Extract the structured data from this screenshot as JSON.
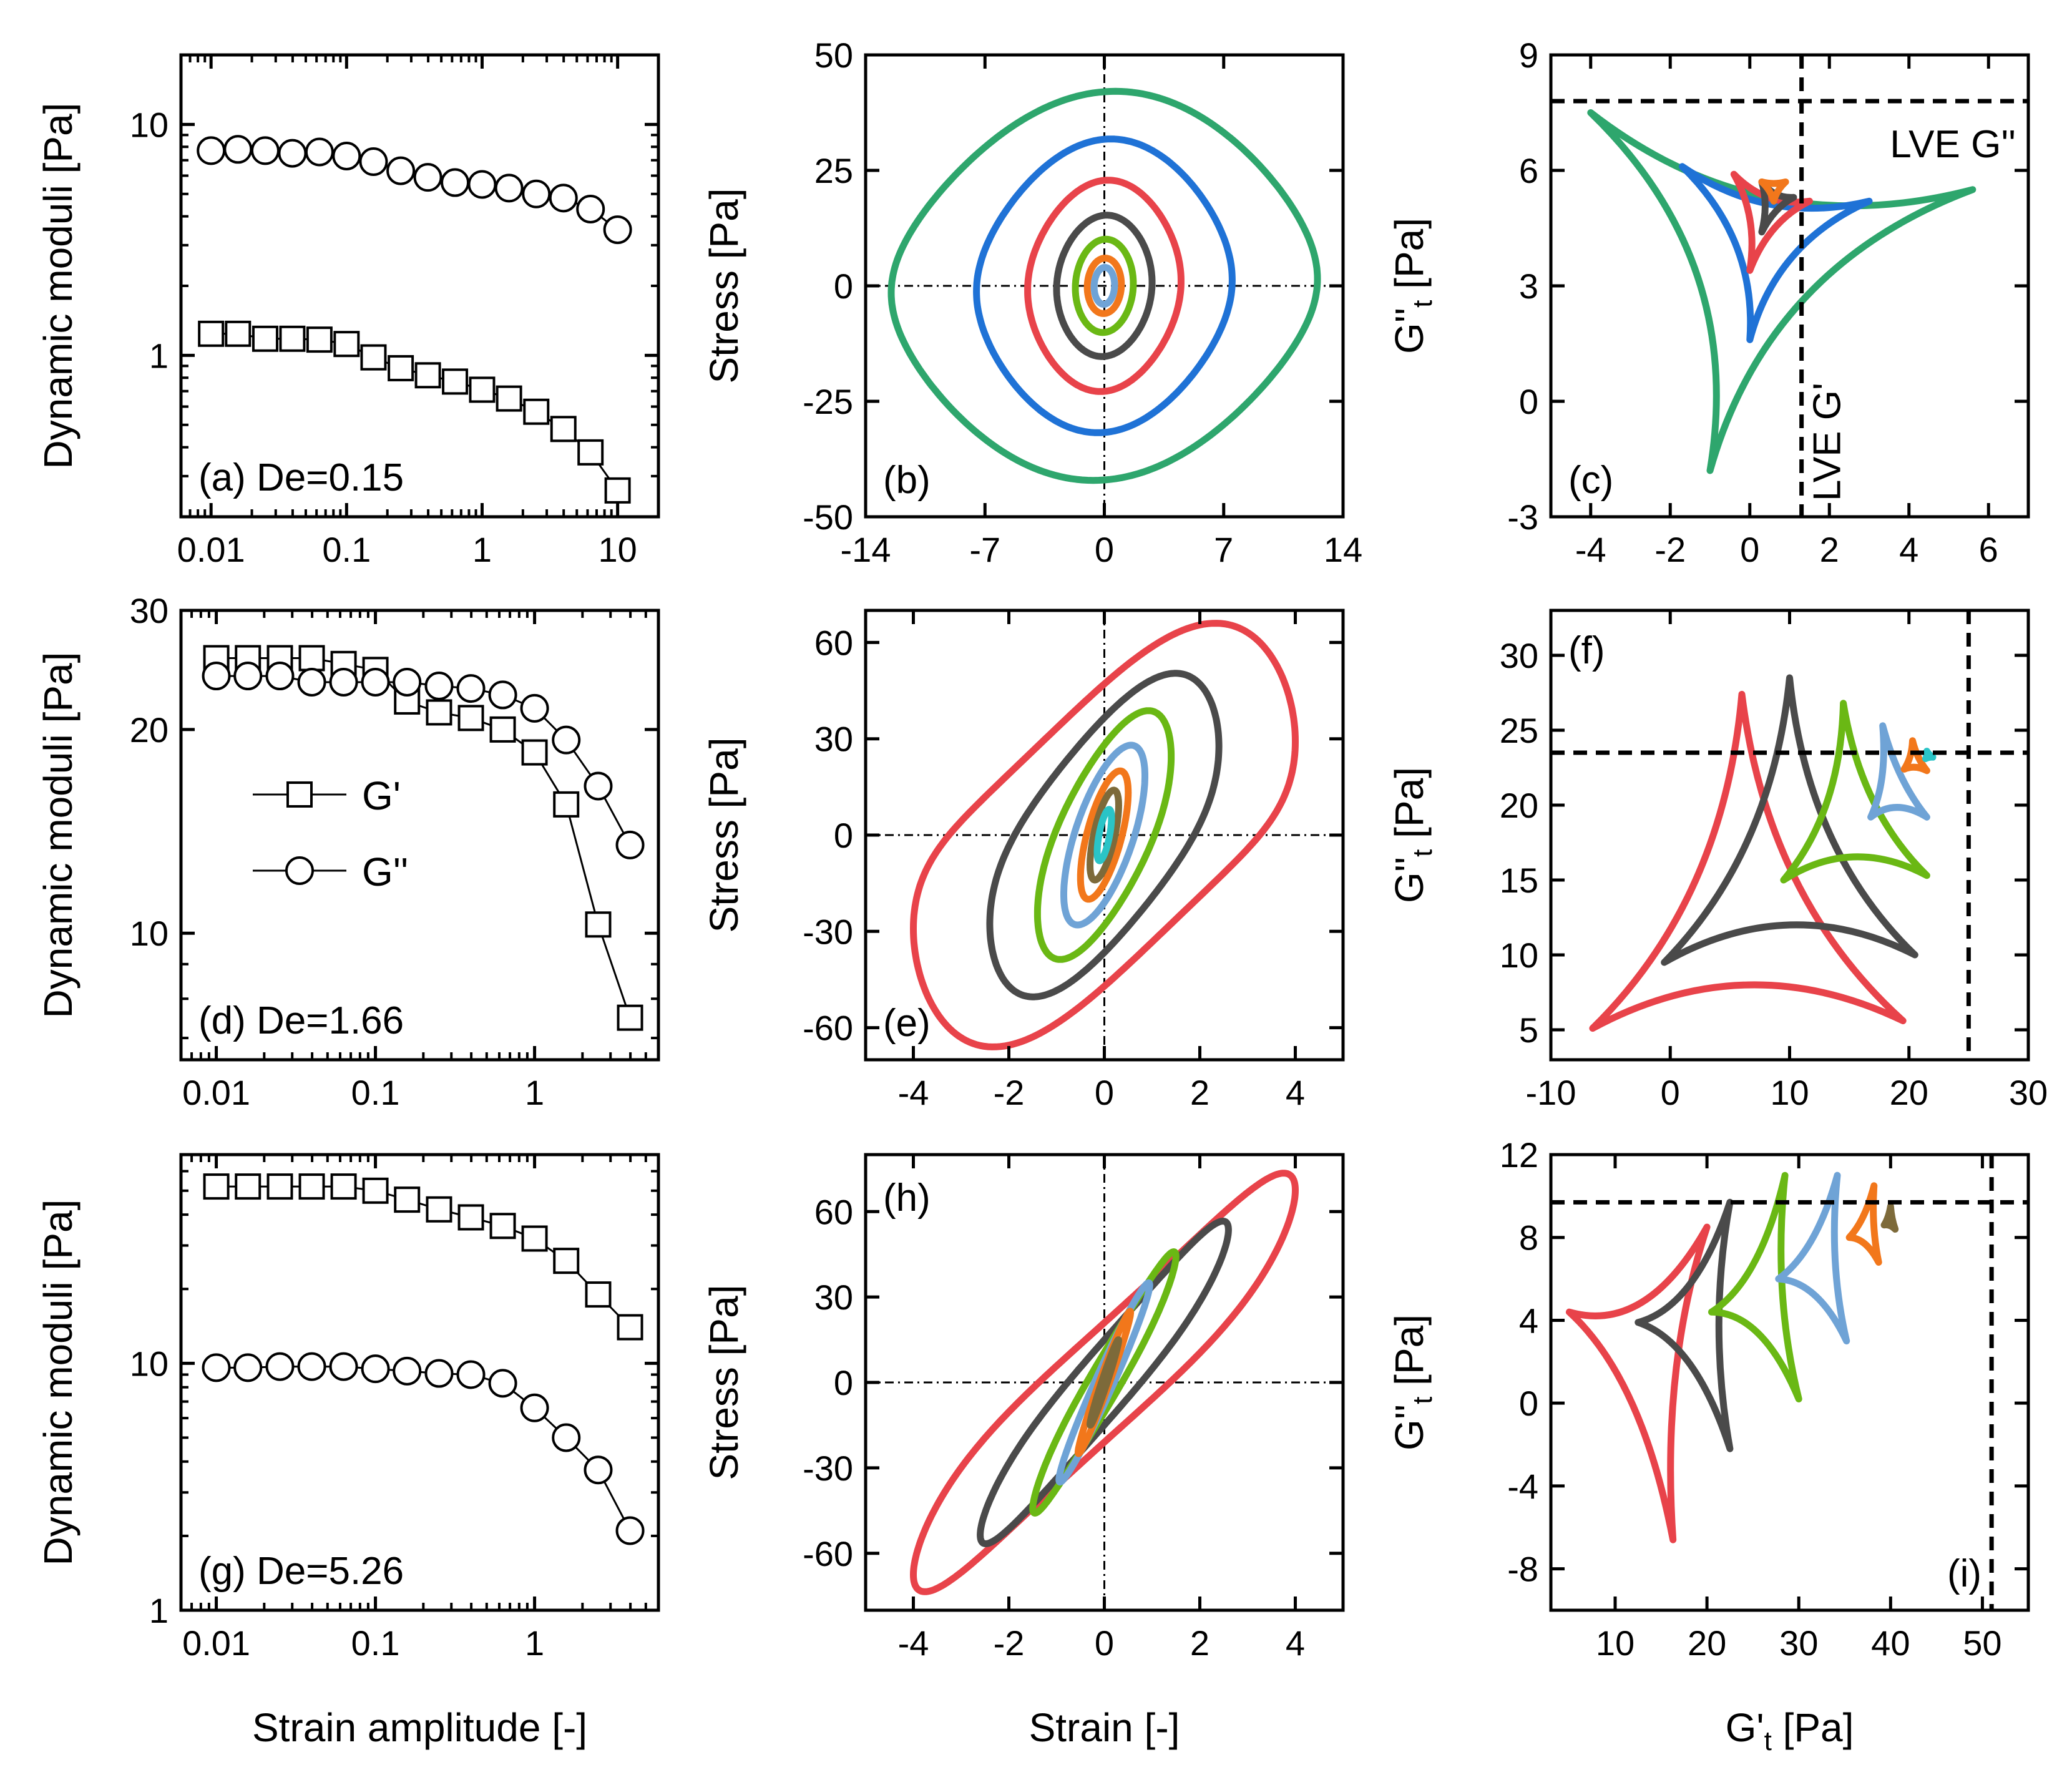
{
  "colors": {
    "green": "#2ea66d",
    "blue": "#1f72d6",
    "red": "#e8434a",
    "dark": "#4a4a4a",
    "lime": "#6ab814",
    "orange": "#f2771b",
    "lightblue": "#6fa3d6",
    "cyan": "#2ac4c7",
    "olive": "#7d6a3a"
  },
  "chart_data": [
    {
      "id": "a",
      "type": "scatter",
      "label": "(a) De=0.15",
      "ylabel": "Dynamic moduli [Pa]",
      "xscale": "log",
      "yscale": "log",
      "xlim": [
        0.006,
        20
      ],
      "ylim": [
        0.2,
        20
      ],
      "xticks": [
        {
          "v": 0.01,
          "t": "0.01"
        },
        {
          "v": 0.1,
          "t": "0.1"
        },
        {
          "v": 1,
          "t": "1"
        },
        {
          "v": 10,
          "t": "10"
        }
      ],
      "yticks": [
        {
          "v": 1,
          "t": "1"
        },
        {
          "v": 10,
          "t": "10"
        }
      ],
      "series": [
        {
          "name": "G'",
          "marker": "square",
          "x": [
            0.01,
            0.0158,
            0.0251,
            0.0398,
            0.0631,
            0.1,
            0.158,
            0.251,
            0.398,
            0.631,
            1,
            1.58,
            2.51,
            3.98,
            6.31,
            10
          ],
          "y": [
            1.24,
            1.24,
            1.18,
            1.18,
            1.17,
            1.12,
            0.98,
            0.88,
            0.82,
            0.77,
            0.71,
            0.65,
            0.57,
            0.48,
            0.38,
            0.26
          ]
        },
        {
          "name": "G''",
          "marker": "circle",
          "x": [
            0.01,
            0.0158,
            0.0251,
            0.0398,
            0.0631,
            0.1,
            0.158,
            0.251,
            0.398,
            0.631,
            1,
            1.58,
            2.51,
            3.98,
            6.31,
            10
          ],
          "y": [
            7.7,
            7.8,
            7.7,
            7.5,
            7.6,
            7.3,
            6.9,
            6.3,
            5.9,
            5.6,
            5.5,
            5.3,
            5.0,
            4.8,
            4.3,
            3.5
          ]
        }
      ]
    },
    {
      "id": "b",
      "type": "line",
      "label": "(b)",
      "ylabel": "Stress [Pa]",
      "xlim": [
        -14,
        14
      ],
      "ylim": [
        -50,
        50
      ],
      "xticks": [
        {
          "v": -14,
          "t": "-14"
        },
        {
          "v": -7,
          "t": "-7"
        },
        {
          "v": 0,
          "t": "0"
        },
        {
          "v": 7,
          "t": "7"
        },
        {
          "v": 14,
          "t": "14"
        }
      ],
      "yticks": [
        {
          "v": -50,
          "t": "-50"
        },
        {
          "v": -25,
          "t": "-25"
        },
        {
          "v": 0,
          "t": "0"
        },
        {
          "v": 25,
          "t": "25"
        },
        {
          "v": 50,
          "t": "50"
        }
      ],
      "series": [
        {
          "color": "green",
          "g0": 12.5,
          "s0": 39,
          "ph": 1.52,
          "h3": 0.08
        },
        {
          "color": "blue",
          "g0": 7.5,
          "s0": 30,
          "ph": 1.52,
          "h3": 0.06
        },
        {
          "color": "red",
          "g0": 4.5,
          "s0": 22,
          "ph": 1.52,
          "h3": 0.04
        },
        {
          "color": "dark",
          "g0": 2.8,
          "s0": 15,
          "ph": 1.52,
          "h3": 0.02
        },
        {
          "color": "lime",
          "g0": 1.7,
          "s0": 10,
          "ph": 1.52,
          "h3": 0.01
        },
        {
          "color": "orange",
          "g0": 1.0,
          "s0": 6,
          "ph": 1.52,
          "h3": 0
        },
        {
          "color": "lightblue",
          "g0": 0.6,
          "s0": 4,
          "ph": 1.52,
          "h3": 0
        }
      ]
    },
    {
      "id": "c",
      "type": "line",
      "label": "(c)",
      "ylabel": "G''t [Pa]",
      "xlim": [
        -5,
        7
      ],
      "ylim": [
        -3,
        9
      ],
      "xticks": [
        {
          "v": -4,
          "t": "-4"
        },
        {
          "v": -2,
          "t": "-2"
        },
        {
          "v": 0,
          "t": "0"
        },
        {
          "v": 2,
          "t": "2"
        },
        {
          "v": 4,
          "t": "4"
        },
        {
          "v": 6,
          "t": "6"
        }
      ],
      "yticks": [
        {
          "v": -3,
          "t": "-3"
        },
        {
          "v": 0,
          "t": "0"
        },
        {
          "v": 3,
          "t": "3"
        },
        {
          "v": 6,
          "t": "6"
        },
        {
          "v": 9,
          "t": "9"
        }
      ],
      "lve_x": 1.3,
      "lve_y": 7.8,
      "lve_x_label": "LVE G'",
      "lve_y_label": "LVE G''",
      "series": [
        {
          "color": "green",
          "vertices": [
            [
              -4,
              7.5
            ],
            [
              5.6,
              5.5
            ],
            [
              -1,
              -1.8
            ]
          ],
          "bulge": 0.55
        },
        {
          "color": "blue",
          "vertices": [
            [
              -1.7,
              6.1
            ],
            [
              3,
              5.2
            ],
            [
              0,
              1.6
            ]
          ],
          "bulge": 0.5
        },
        {
          "color": "red",
          "vertices": [
            [
              -0.4,
              5.9
            ],
            [
              1.5,
              5.2
            ],
            [
              0,
              3.4
            ]
          ],
          "bulge": 0.45
        },
        {
          "color": "dark",
          "vertices": [
            [
              0.3,
              5.7
            ],
            [
              1.1,
              5.3
            ],
            [
              0.3,
              4.4
            ]
          ],
          "bulge": 0.4
        },
        {
          "color": "orange",
          "vertices": [
            [
              0.3,
              5.7
            ],
            [
              0.9,
              5.7
            ],
            [
              0.6,
              5.2
            ]
          ],
          "bulge": 0.3
        }
      ]
    },
    {
      "id": "d",
      "type": "scatter",
      "label": "(d) De=1.66",
      "ylabel": "Dynamic moduli [Pa]",
      "xscale": "log",
      "yscale": "log",
      "xlim": [
        0.006,
        6
      ],
      "ylim": [
        6.5,
        30
      ],
      "xticks": [
        {
          "v": 0.01,
          "t": "0.01"
        },
        {
          "v": 0.1,
          "t": "0.1"
        },
        {
          "v": 1,
          "t": "1"
        }
      ],
      "yticks": [
        {
          "v": 10,
          "t": "10"
        },
        {
          "v": 20,
          "t": "20"
        },
        {
          "v": 30,
          "t": "30"
        }
      ],
      "legend": [
        {
          "name": "G'",
          "marker": "square"
        },
        {
          "name": "G''",
          "marker": "circle"
        }
      ],
      "series": [
        {
          "name": "G'",
          "marker": "square",
          "x": [
            0.01,
            0.0158,
            0.0251,
            0.0398,
            0.0631,
            0.1,
            0.158,
            0.251,
            0.398,
            0.631,
            1,
            1.58,
            2.51,
            3.98
          ],
          "y": [
            25.5,
            25.5,
            25.5,
            25.5,
            25,
            24.5,
            22,
            21.2,
            20.8,
            20.0,
            18.5,
            15.5,
            10.3,
            7.5
          ]
        },
        {
          "name": "G''",
          "marker": "circle",
          "x": [
            0.01,
            0.0158,
            0.0251,
            0.0398,
            0.0631,
            0.1,
            0.158,
            0.251,
            0.398,
            0.631,
            1,
            1.58,
            2.51,
            3.98
          ],
          "y": [
            24,
            24,
            24,
            23.5,
            23.5,
            23.5,
            23.5,
            23.2,
            23.0,
            22.5,
            21.5,
            19.3,
            16.5,
            13.5
          ]
        }
      ]
    },
    {
      "id": "e",
      "type": "line",
      "label": "(e)",
      "ylabel": "Stress [Pa]",
      "xlim": [
        -5,
        5
      ],
      "ylim": [
        -70,
        70
      ],
      "xticks": [
        {
          "v": -4,
          "t": "-4"
        },
        {
          "v": -2,
          "t": "-2"
        },
        {
          "v": 0,
          "t": "0"
        },
        {
          "v": 2,
          "t": "2"
        },
        {
          "v": 4,
          "t": "4"
        }
      ],
      "yticks": [
        {
          "v": -60,
          "t": "-60"
        },
        {
          "v": -30,
          "t": "-30"
        },
        {
          "v": 0,
          "t": "0"
        },
        {
          "v": 30,
          "t": "30"
        },
        {
          "v": 60,
          "t": "60"
        }
      ],
      "series": [
        {
          "color": "red",
          "g0": 4,
          "s0": 60,
          "ph": 0.95,
          "h3": 0.1
        },
        {
          "color": "dark",
          "g0": 2.4,
          "s0": 48,
          "ph": 0.9,
          "h3": 0.05
        },
        {
          "color": "lime",
          "g0": 1.4,
          "s0": 38,
          "ph": 0.85,
          "h3": 0.02
        },
        {
          "color": "lightblue",
          "g0": 0.85,
          "s0": 28,
          "ph": 0.85,
          "h3": 0
        },
        {
          "color": "orange",
          "g0": 0.5,
          "s0": 20,
          "ph": 0.85,
          "h3": 0
        },
        {
          "color": "olive",
          "g0": 0.3,
          "s0": 14,
          "ph": 0.85,
          "h3": 0
        },
        {
          "color": "cyan",
          "g0": 0.15,
          "s0": 8,
          "ph": 0.85,
          "h3": 0
        }
      ]
    },
    {
      "id": "f",
      "type": "line",
      "label": "(f)",
      "ylabel": "G''t [Pa]",
      "xlim": [
        -10,
        30
      ],
      "ylim": [
        3,
        33
      ],
      "xticks": [
        {
          "v": -10,
          "t": "-10"
        },
        {
          "v": 0,
          "t": "0"
        },
        {
          "v": 10,
          "t": "10"
        },
        {
          "v": 20,
          "t": "20"
        },
        {
          "v": 30,
          "t": "30"
        }
      ],
      "yticks": [
        {
          "v": 5,
          "t": "5"
        },
        {
          "v": 10,
          "t": "10"
        },
        {
          "v": 15,
          "t": "15"
        },
        {
          "v": 20,
          "t": "20"
        },
        {
          "v": 25,
          "t": "25"
        },
        {
          "v": 30,
          "t": "30"
        }
      ],
      "lve_x": 25,
      "lve_y": 23.5,
      "series": [
        {
          "color": "red",
          "vertices": [
            [
              6,
              27.4
            ],
            [
              19.5,
              5.6
            ],
            [
              -6.5,
              5.1
            ]
          ],
          "bulge": 0.45
        },
        {
          "color": "dark",
          "vertices": [
            [
              10,
              28.5
            ],
            [
              20.5,
              10
            ],
            [
              -0.5,
              9.5
            ]
          ],
          "bulge": 0.45
        },
        {
          "color": "lime",
          "vertices": [
            [
              14.5,
              26.8
            ],
            [
              21.5,
              15.3
            ],
            [
              9.5,
              15
            ]
          ],
          "bulge": 0.45
        },
        {
          "color": "lightblue",
          "vertices": [
            [
              17.8,
              25.3
            ],
            [
              21.5,
              19.2
            ],
            [
              16.8,
              19.2
            ]
          ],
          "bulge": 0.4
        },
        {
          "color": "orange",
          "vertices": [
            [
              20.3,
              24.3
            ],
            [
              21.5,
              22.3
            ],
            [
              19.6,
              22.4
            ]
          ],
          "bulge": 0.35
        },
        {
          "color": "cyan",
          "vertices": [
            [
              21.5,
              23.6
            ],
            [
              22,
              23.2
            ],
            [
              21.4,
              23.1
            ]
          ],
          "bulge": 0.3
        }
      ]
    },
    {
      "id": "g",
      "type": "scatter",
      "label": "(g) De=5.26",
      "ylabel": "Dynamic moduli [Pa]",
      "xlabel": "Strain amplitude [-]",
      "xscale": "log",
      "yscale": "log",
      "xlim": [
        0.006,
        6
      ],
      "ylim": [
        1,
        70
      ],
      "xticks": [
        {
          "v": 0.01,
          "t": "0.01"
        },
        {
          "v": 0.1,
          "t": "0.1"
        },
        {
          "v": 1,
          "t": "1"
        }
      ],
      "yticks": [
        {
          "v": 1,
          "t": "1"
        },
        {
          "v": 10,
          "t": "10"
        }
      ],
      "series": [
        {
          "name": "G'",
          "marker": "square",
          "x": [
            0.01,
            0.0158,
            0.0251,
            0.0398,
            0.0631,
            0.1,
            0.158,
            0.251,
            0.398,
            0.631,
            1,
            1.58,
            2.51,
            3.98
          ],
          "y": [
            52,
            52,
            52,
            52,
            52,
            50,
            46,
            42,
            39,
            36,
            32,
            26,
            19,
            14
          ]
        },
        {
          "name": "G''",
          "marker": "circle",
          "x": [
            0.01,
            0.0158,
            0.0251,
            0.0398,
            0.0631,
            0.1,
            0.158,
            0.251,
            0.398,
            0.631,
            1,
            1.58,
            2.51,
            3.98
          ],
          "y": [
            9.6,
            9.6,
            9.7,
            9.7,
            9.7,
            9.5,
            9.3,
            9.1,
            9.0,
            8.3,
            6.6,
            5.0,
            3.7,
            2.1
          ]
        }
      ]
    },
    {
      "id": "h",
      "type": "line",
      "label": "(h)",
      "ylabel": "Stress [Pa]",
      "xlabel": "Strain [-]",
      "xlim": [
        -5,
        5
      ],
      "ylim": [
        -80,
        80
      ],
      "xticks": [
        {
          "v": -4,
          "t": "-4"
        },
        {
          "v": -2,
          "t": "-2"
        },
        {
          "v": 0,
          "t": "0"
        },
        {
          "v": 2,
          "t": "2"
        },
        {
          "v": 4,
          "t": "4"
        }
      ],
      "yticks": [
        {
          "v": -60,
          "t": "-60"
        },
        {
          "v": -30,
          "t": "-30"
        },
        {
          "v": 0,
          "t": "0"
        },
        {
          "v": 30,
          "t": "30"
        },
        {
          "v": 60,
          "t": "60"
        }
      ],
      "series": [
        {
          "color": "red",
          "g0": 4,
          "s0": 70,
          "ph": 0.35,
          "h3": 0.05
        },
        {
          "color": "dark",
          "g0": 2.6,
          "s0": 55,
          "ph": 0.3,
          "h3": 0.03
        },
        {
          "color": "lime",
          "g0": 1.5,
          "s0": 45,
          "ph": 0.25,
          "h3": 0.02
        },
        {
          "color": "lightblue",
          "g0": 0.95,
          "s0": 35,
          "ph": 0.22,
          "h3": 0
        },
        {
          "color": "orange",
          "g0": 0.55,
          "s0": 25,
          "ph": 0.2,
          "h3": 0
        },
        {
          "color": "olive",
          "g0": 0.3,
          "s0": 15,
          "ph": 0.2,
          "h3": 0
        }
      ]
    },
    {
      "id": "i",
      "type": "line",
      "label": "(i)",
      "ylabel": "G''t [Pa]",
      "xlabel": "G't [Pa]",
      "xlim": [
        3,
        55
      ],
      "ylim": [
        -10,
        12
      ],
      "xticks": [
        {
          "v": 10,
          "t": "10"
        },
        {
          "v": 20,
          "t": "20"
        },
        {
          "v": 30,
          "t": "30"
        },
        {
          "v": 40,
          "t": "40"
        },
        {
          "v": 50,
          "t": "50"
        }
      ],
      "yticks": [
        {
          "v": -8,
          "t": "-8"
        },
        {
          "v": -4,
          "t": "-4"
        },
        {
          "v": 0,
          "t": "0"
        },
        {
          "v": 4,
          "t": "4"
        },
        {
          "v": 8,
          "t": "8"
        },
        {
          "v": 12,
          "t": "12"
        }
      ],
      "lve_x": 51,
      "lve_y": 9.7,
      "series": [
        {
          "color": "red",
          "vertices": [
            [
              20,
              8.5
            ],
            [
              16.3,
              -6.6
            ],
            [
              5,
              4.4
            ]
          ],
          "bulge": 0.45
        },
        {
          "color": "dark",
          "vertices": [
            [
              22.5,
              9.7
            ],
            [
              22.5,
              -2.2
            ],
            [
              12.5,
              3.9
            ]
          ],
          "bulge": 0.45
        },
        {
          "color": "lime",
          "vertices": [
            [
              28.5,
              11
            ],
            [
              30,
              0.2
            ],
            [
              20.5,
              4.4
            ]
          ],
          "bulge": 0.45
        },
        {
          "color": "lightblue",
          "vertices": [
            [
              34.2,
              11
            ],
            [
              35.2,
              3
            ],
            [
              27.8,
              6
            ]
          ],
          "bulge": 0.4
        },
        {
          "color": "orange",
          "vertices": [
            [
              38.2,
              10.5
            ],
            [
              38.7,
              6.8
            ],
            [
              35.5,
              8
            ]
          ],
          "bulge": 0.35
        },
        {
          "color": "olive",
          "vertices": [
            [
              40,
              9.5
            ],
            [
              40.5,
              8.4
            ],
            [
              39.3,
              8.6
            ]
          ],
          "bulge": 0.3
        }
      ]
    }
  ]
}
